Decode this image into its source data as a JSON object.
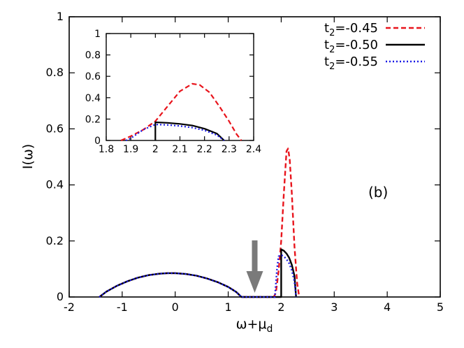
{
  "chart_data": [
    {
      "type": "line",
      "panel": "main",
      "xlabel": "ω+μ",
      "xlabel_sub": "d",
      "ylabel": "I(ω)",
      "annotation": "(b)",
      "xlim": [
        -2,
        5
      ],
      "ylim": [
        0,
        1
      ],
      "xticks": [
        "-2",
        "-1",
        "0",
        "1",
        "2",
        "3",
        "4",
        "5"
      ],
      "yticks": [
        "0",
        "0.2",
        "0.4",
        "0.6",
        "0.8",
        "1"
      ],
      "legend_position": "top-right",
      "arrow_marker_x": 1.5,
      "series": [
        {
          "name_prefix": "t",
          "name_sub": "2",
          "name_value": "=-0.45",
          "color": "#e8141c",
          "style": "dashed",
          "points": [
            [
              -1.43,
              0
            ],
            [
              -1.3,
              0.019
            ],
            [
              -1.1,
              0.04
            ],
            [
              -0.9,
              0.056
            ],
            [
              -0.7,
              0.069
            ],
            [
              -0.5,
              0.078
            ],
            [
              -0.3,
              0.083
            ],
            [
              -0.15,
              0.085
            ],
            [
              0,
              0.085
            ],
            [
              0.2,
              0.082
            ],
            [
              0.4,
              0.076
            ],
            [
              0.6,
              0.066
            ],
            [
              0.8,
              0.053
            ],
            [
              1.0,
              0.036
            ],
            [
              1.15,
              0.018
            ],
            [
              1.25,
              0
            ],
            [
              1.86,
              0
            ],
            [
              1.9,
              0.015
            ],
            [
              1.95,
              0.09
            ],
            [
              2.0,
              0.2
            ],
            [
              2.05,
              0.37
            ],
            [
              2.1,
              0.52
            ],
            [
              2.13,
              0.53
            ],
            [
              2.16,
              0.49
            ],
            [
              2.2,
              0.37
            ],
            [
              2.25,
              0.18
            ],
            [
              2.3,
              0.05
            ],
            [
              2.34,
              0
            ]
          ]
        },
        {
          "name_prefix": "t",
          "name_sub": "2",
          "name_value": "=-0.50",
          "color": "#000000",
          "style": "solid",
          "points": [
            [
              -1.43,
              0
            ],
            [
              -1.3,
              0.019
            ],
            [
              -1.1,
              0.04
            ],
            [
              -0.9,
              0.056
            ],
            [
              -0.7,
              0.069
            ],
            [
              -0.5,
              0.078
            ],
            [
              -0.3,
              0.083
            ],
            [
              -0.15,
              0.085
            ],
            [
              0,
              0.085
            ],
            [
              0.2,
              0.082
            ],
            [
              0.4,
              0.076
            ],
            [
              0.6,
              0.066
            ],
            [
              0.8,
              0.053
            ],
            [
              1.0,
              0.036
            ],
            [
              1.15,
              0.018
            ],
            [
              1.25,
              0
            ],
            [
              2.0,
              0
            ],
            [
              2.0,
              0.17
            ],
            [
              2.05,
              0.165
            ],
            [
              2.1,
              0.155
            ],
            [
              2.15,
              0.14
            ],
            [
              2.2,
              0.115
            ],
            [
              2.25,
              0.075
            ],
            [
              2.28,
              0
            ]
          ]
        },
        {
          "name_prefix": "t",
          "name_sub": "2",
          "name_value": "=-0.55",
          "color": "#1a1ae6",
          "style": "dotted",
          "points": [
            [
              -1.43,
              0
            ],
            [
              -1.3,
              0.019
            ],
            [
              -1.1,
              0.04
            ],
            [
              -0.9,
              0.056
            ],
            [
              -0.7,
              0.069
            ],
            [
              -0.5,
              0.078
            ],
            [
              -0.3,
              0.083
            ],
            [
              -0.15,
              0.085
            ],
            [
              0,
              0.085
            ],
            [
              0.2,
              0.082
            ],
            [
              0.4,
              0.076
            ],
            [
              0.6,
              0.066
            ],
            [
              0.8,
              0.053
            ],
            [
              1.0,
              0.036
            ],
            [
              1.15,
              0.018
            ],
            [
              1.25,
              0
            ],
            [
              1.88,
              0
            ],
            [
              1.92,
              0.1
            ],
            [
              1.95,
              0.145
            ],
            [
              2.0,
              0.15
            ],
            [
              2.05,
              0.145
            ],
            [
              2.1,
              0.135
            ],
            [
              2.15,
              0.12
            ],
            [
              2.2,
              0.095
            ],
            [
              2.25,
              0.055
            ],
            [
              2.28,
              0
            ]
          ]
        }
      ]
    },
    {
      "type": "line",
      "panel": "inset",
      "xlim": [
        1.8,
        2.4
      ],
      "ylim": [
        0,
        1
      ],
      "xticks": [
        "1.8",
        "1.9",
        "2",
        "2.1",
        "2.2",
        "2.3",
        "2.4"
      ],
      "yticks": [
        "0",
        "0.2",
        "0.4",
        "0.6",
        "0.8",
        "1"
      ],
      "series": [
        {
          "color": "#e8141c",
          "style": "dashed",
          "points": [
            [
              1.86,
              0
            ],
            [
              1.9,
              0.04
            ],
            [
              1.95,
              0.1
            ],
            [
              2.0,
              0.18
            ],
            [
              2.05,
              0.32
            ],
            [
              2.1,
              0.46
            ],
            [
              2.15,
              0.53
            ],
            [
              2.18,
              0.52
            ],
            [
              2.22,
              0.45
            ],
            [
              2.26,
              0.32
            ],
            [
              2.3,
              0.18
            ],
            [
              2.33,
              0.06
            ],
            [
              2.35,
              0
            ]
          ]
        },
        {
          "color": "#000000",
          "style": "solid",
          "points": [
            [
              2.0,
              0
            ],
            [
              2.0,
              0.17
            ],
            [
              2.05,
              0.165
            ],
            [
              2.1,
              0.155
            ],
            [
              2.15,
              0.14
            ],
            [
              2.2,
              0.11
            ],
            [
              2.25,
              0.065
            ],
            [
              2.28,
              0
            ]
          ]
        },
        {
          "color": "#1a1ae6",
          "style": "dotted",
          "points": [
            [
              1.88,
              0
            ],
            [
              1.9,
              0.02
            ],
            [
              1.95,
              0.1
            ],
            [
              2.0,
              0.15
            ],
            [
              2.05,
              0.145
            ],
            [
              2.1,
              0.135
            ],
            [
              2.15,
              0.12
            ],
            [
              2.2,
              0.095
            ],
            [
              2.25,
              0.05
            ],
            [
              2.28,
              0
            ]
          ]
        }
      ]
    }
  ]
}
